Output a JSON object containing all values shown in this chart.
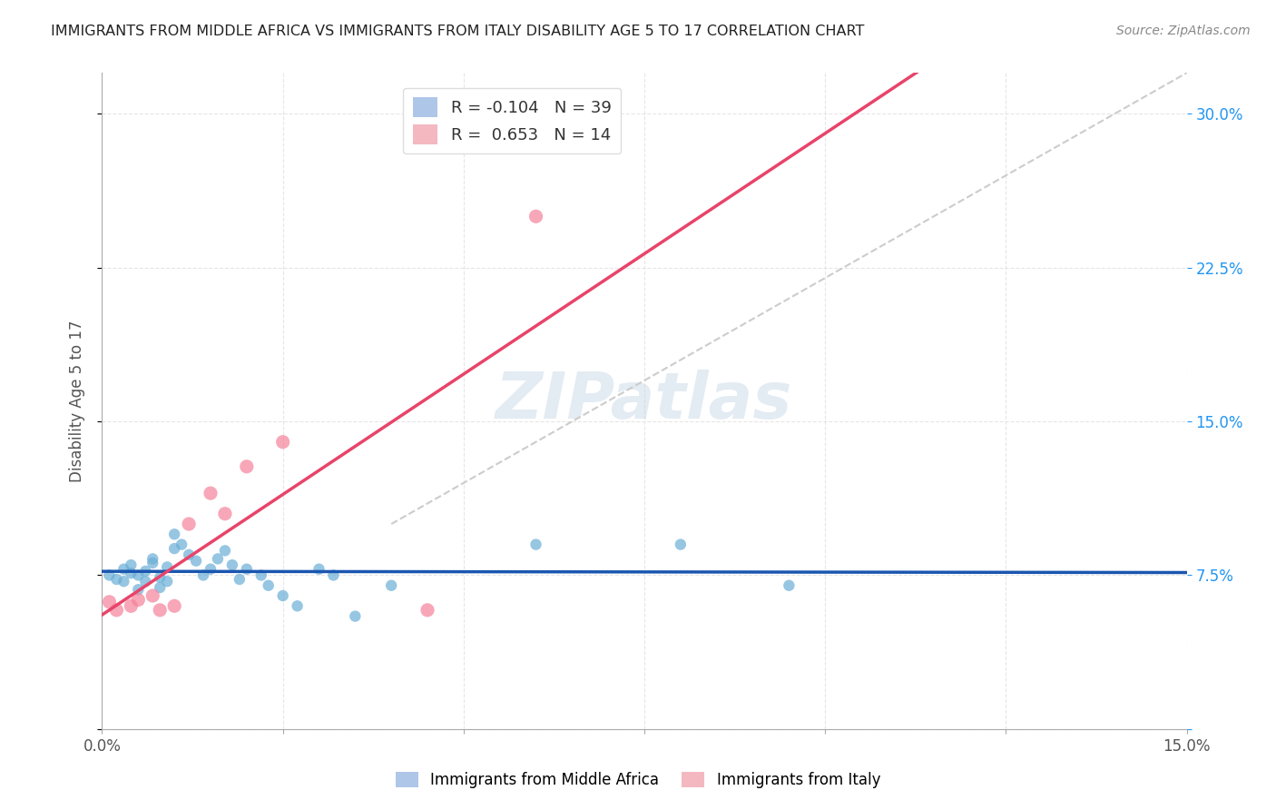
{
  "title": "IMMIGRANTS FROM MIDDLE AFRICA VS IMMIGRANTS FROM ITALY DISABILITY AGE 5 TO 17 CORRELATION CHART",
  "source": "Source: ZipAtlas.com",
  "ylabel": "Disability Age 5 to 17",
  "xlim": [
    0.0,
    0.15
  ],
  "ylim": [
    0.0,
    0.32
  ],
  "yticks": [
    0.0,
    0.075,
    0.15,
    0.225,
    0.3
  ],
  "ytick_labels": [
    "",
    "7.5%",
    "15.0%",
    "22.5%",
    "30.0%"
  ],
  "xticks": [
    0.0,
    0.025,
    0.05,
    0.075,
    0.1,
    0.125,
    0.15
  ],
  "xtick_labels": [
    "0.0%",
    "",
    "",
    "",
    "",
    "",
    "15.0%"
  ],
  "legend_label_blue": "R = -0.104   N = 39",
  "legend_label_pink": "R =  0.653   N = 14",
  "legend_color_blue": "#aec6e8",
  "legend_color_pink": "#f4b8c1",
  "watermark": "ZIPatlas",
  "blue_series": {
    "color": "#6aaed6",
    "x": [
      0.001,
      0.002,
      0.003,
      0.003,
      0.004,
      0.004,
      0.005,
      0.005,
      0.006,
      0.006,
      0.007,
      0.007,
      0.008,
      0.008,
      0.009,
      0.009,
      0.01,
      0.01,
      0.011,
      0.012,
      0.013,
      0.014,
      0.015,
      0.016,
      0.017,
      0.018,
      0.019,
      0.02,
      0.022,
      0.023,
      0.025,
      0.027,
      0.03,
      0.032,
      0.035,
      0.04,
      0.06,
      0.08,
      0.095
    ],
    "y": [
      0.075,
      0.073,
      0.078,
      0.072,
      0.076,
      0.08,
      0.075,
      0.068,
      0.072,
      0.077,
      0.081,
      0.083,
      0.074,
      0.069,
      0.072,
      0.079,
      0.095,
      0.088,
      0.09,
      0.085,
      0.082,
      0.075,
      0.078,
      0.083,
      0.087,
      0.08,
      0.073,
      0.078,
      0.075,
      0.07,
      0.065,
      0.06,
      0.078,
      0.075,
      0.055,
      0.07,
      0.09,
      0.09,
      0.07
    ],
    "size": 80
  },
  "pink_series": {
    "color": "#f4829a",
    "x": [
      0.001,
      0.002,
      0.004,
      0.005,
      0.007,
      0.008,
      0.01,
      0.012,
      0.015,
      0.017,
      0.02,
      0.025,
      0.045,
      0.06
    ],
    "y": [
      0.062,
      0.058,
      0.06,
      0.063,
      0.065,
      0.058,
      0.06,
      0.1,
      0.115,
      0.105,
      0.128,
      0.14,
      0.058,
      0.25
    ],
    "size": 120
  },
  "background_color": "#ffffff",
  "grid_color": "#e0e0e0",
  "title_color": "#222222",
  "axis_color": "#555555",
  "blue_line_color": "#1a56b0",
  "pink_line_color": "#e8446a",
  "ref_line_color": "#cccccc",
  "bottom_legend_blue": "Immigrants from Middle Africa",
  "bottom_legend_pink": "Immigrants from Italy"
}
